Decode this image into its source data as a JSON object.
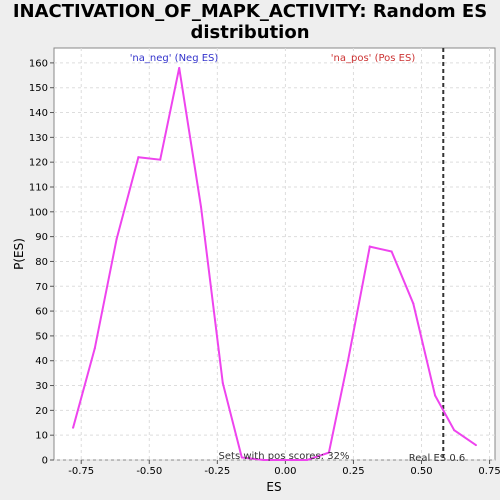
{
  "chart_data": {
    "type": "line",
    "title_line1": "INACTIVATION_OF_MAPK_ACTIVITY: Random ES",
    "title_line2": "distribution",
    "xlabel": "ES",
    "ylabel": "P(ES)",
    "xlim": [
      -0.85,
      0.77
    ],
    "ylim": [
      0,
      166
    ],
    "x_ticks": [
      -0.75,
      -0.5,
      -0.25,
      0.0,
      0.25,
      0.5,
      0.75
    ],
    "x_tick_labels": [
      "-0.75",
      "-0.50",
      "-0.25",
      "0.00",
      "0.25",
      "0.50",
      "0.75"
    ],
    "y_ticks": [
      0,
      10,
      20,
      30,
      40,
      50,
      60,
      70,
      80,
      90,
      100,
      110,
      120,
      130,
      140,
      150,
      160
    ],
    "grid": true,
    "line_color": "#ee44ee",
    "series": [
      {
        "x": [
          -0.78,
          -0.7,
          -0.62,
          -0.54,
          -0.46,
          -0.39,
          -0.31,
          -0.23,
          -0.16,
          -0.08,
          0.0,
          0.08,
          0.16,
          0.23,
          0.31,
          0.39,
          0.47,
          0.55,
          0.62,
          0.7
        ],
        "values": [
          13,
          45,
          89,
          122,
          121,
          158,
          102,
          31,
          1,
          0,
          0,
          0,
          3,
          40,
          86,
          84,
          63,
          26,
          12,
          6
        ]
      }
    ],
    "annotations": {
      "neg_label": "'na_neg' (Neg ES)",
      "neg_color": "#3333cc",
      "pos_label": "'na_pos' (Pos ES)",
      "pos_color": "#cc3333",
      "sets_label": "Sets with pos scores: 32%",
      "real_es_label": "Real ES 0.6",
      "real_es_value": 0.58
    }
  }
}
